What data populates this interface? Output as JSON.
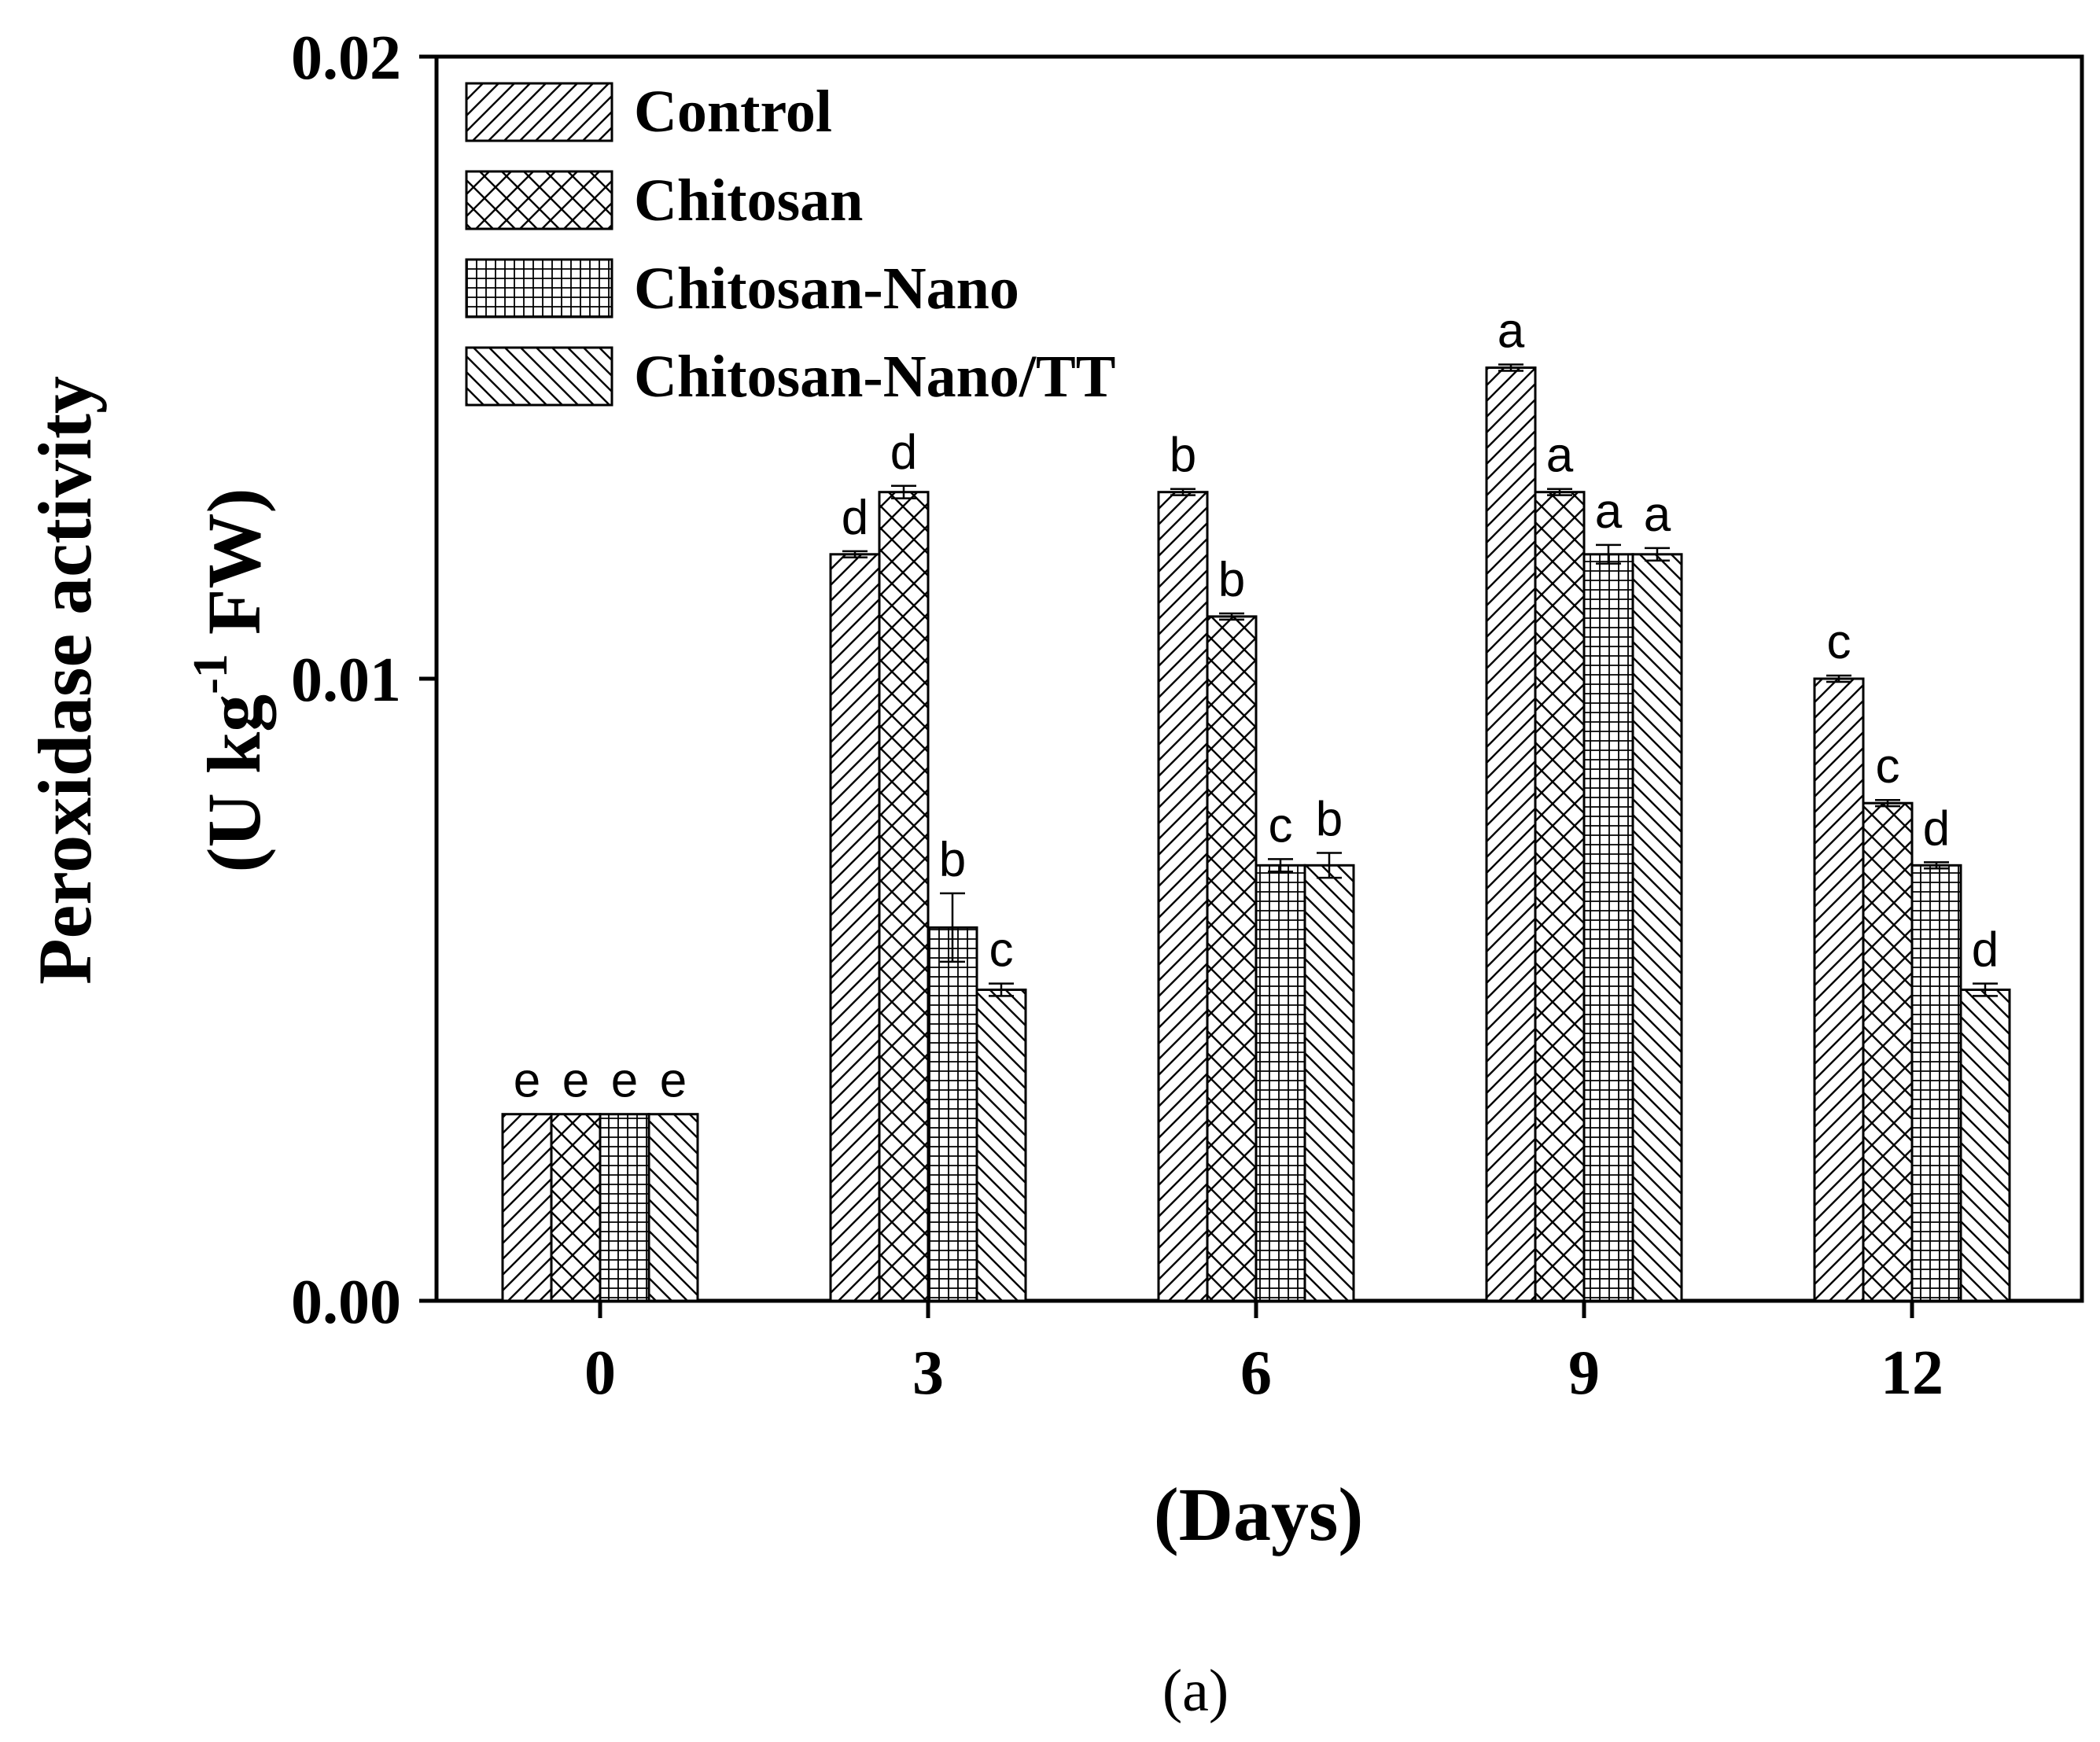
{
  "chart_data": {
    "type": "bar",
    "title": "",
    "panel_label": "(a)",
    "xlabel": "(Days)",
    "ylabel_line1": "Peroxidase activity",
    "ylabel_line2_prefix": "(U kg",
    "ylabel_line2_sup": "-1",
    "ylabel_line2_suffix": " FW)",
    "ylim": [
      0,
      0.02
    ],
    "yticks": [
      0.0,
      0.01,
      0.02
    ],
    "ytick_labels": [
      "0.00",
      "0.01",
      "0.02"
    ],
    "categories": [
      "0",
      "3",
      "6",
      "9",
      "12"
    ],
    "legend_position": "top-left",
    "series": [
      {
        "name": "Control",
        "pattern": "diagonal-forward",
        "values": [
          0.003,
          0.012,
          0.013,
          0.015,
          0.01
        ],
        "errors": [
          0.0,
          5e-05,
          5e-05,
          5e-05,
          5e-05
        ],
        "letters": [
          "e",
          "d",
          "b",
          "a",
          "c"
        ]
      },
      {
        "name": "Chitosan",
        "pattern": "crosshatch",
        "values": [
          0.003,
          0.013,
          0.011,
          0.013,
          0.008
        ],
        "errors": [
          0.0,
          0.0001,
          5e-05,
          5e-05,
          5e-05
        ],
        "letters": [
          "e",
          "d",
          "b",
          "a",
          "c"
        ]
      },
      {
        "name": "Chitosan-Nano",
        "pattern": "grid",
        "values": [
          0.003,
          0.006,
          0.007,
          0.012,
          0.007
        ],
        "errors": [
          0.0,
          0.00055,
          0.0001,
          0.00015,
          5e-05
        ],
        "letters": [
          "e",
          "b",
          "c",
          "a",
          "d"
        ]
      },
      {
        "name": "Chitosan-Nano/TT",
        "pattern": "diagonal-back",
        "values": [
          0.003,
          0.005,
          0.007,
          0.012,
          0.005
        ],
        "errors": [
          0.0,
          0.0001,
          0.0002,
          0.0001,
          0.0001
        ],
        "letters": [
          "e",
          "c",
          "b",
          "a",
          "d"
        ]
      }
    ]
  }
}
